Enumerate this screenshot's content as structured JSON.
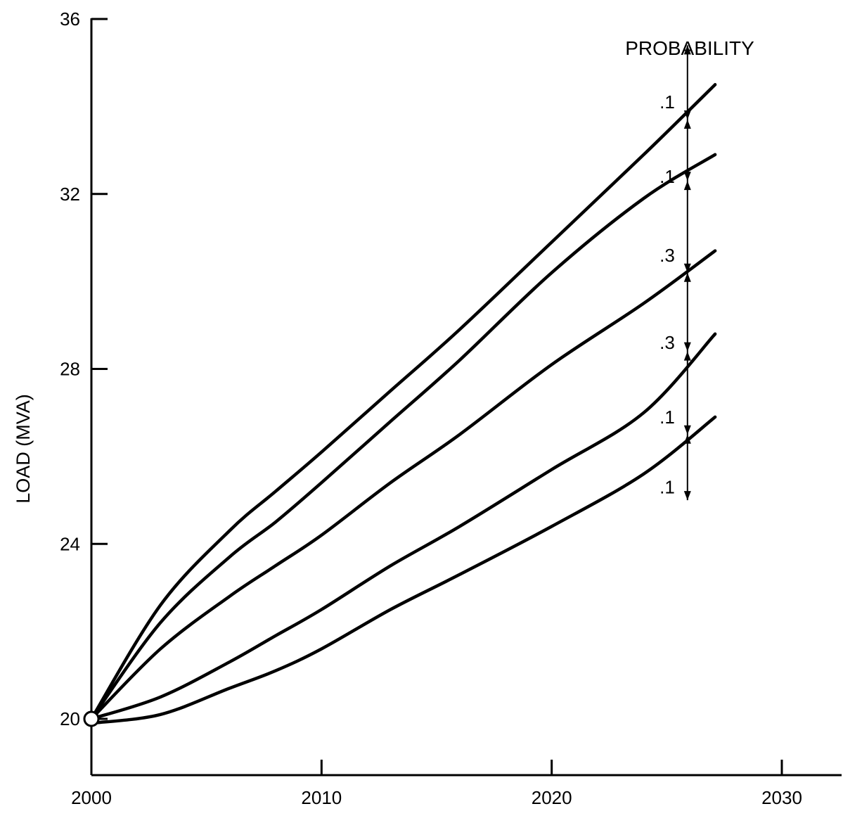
{
  "chart_data": {
    "type": "line",
    "title": "",
    "xlabel": "",
    "ylabel": "LOAD (MVA)",
    "xlim": [
      2000,
      2032
    ],
    "ylim": [
      18.8,
      36
    ],
    "x_ticks": [
      2000,
      2010,
      2020,
      2030
    ],
    "x_tick_labels": [
      "2000",
      "2010",
      "2020",
      "2030"
    ],
    "y_ticks": [
      20,
      24,
      28,
      32,
      36
    ],
    "y_tick_labels": [
      "20",
      "24",
      "28",
      "32",
      "36"
    ],
    "grid": false,
    "legend": "none",
    "start_point": {
      "x": 2000,
      "y": 20
    },
    "series": [
      {
        "x": [
          2000,
          2003,
          2006,
          2008,
          2010,
          2013,
          2016,
          2020,
          2024,
          2027.1
        ],
        "values": [
          20,
          22.6,
          24.3,
          25.2,
          26.1,
          27.5,
          28.9,
          30.9,
          32.9,
          34.5
        ]
      },
      {
        "x": [
          2000,
          2003,
          2006,
          2008,
          2010,
          2013,
          2016,
          2020,
          2024,
          2027.1
        ],
        "values": [
          20,
          22.2,
          23.7,
          24.5,
          25.4,
          26.8,
          28.2,
          30.2,
          31.9,
          32.9
        ]
      },
      {
        "x": [
          2000,
          2003,
          2006,
          2008,
          2010,
          2013,
          2016,
          2020,
          2024,
          2027.1
        ],
        "values": [
          20,
          21.6,
          22.8,
          23.5,
          24.2,
          25.4,
          26.5,
          28.1,
          29.5,
          30.7
        ]
      },
      {
        "x": [
          2000,
          2003,
          2006,
          2008,
          2010,
          2013,
          2016,
          2020,
          2024,
          2027.1
        ],
        "values": [
          20,
          20.5,
          21.3,
          21.9,
          22.5,
          23.5,
          24.4,
          25.7,
          27.0,
          28.8
        ]
      },
      {
        "x": [
          2000,
          2003,
          2006,
          2008,
          2010,
          2013,
          2016,
          2020,
          2024,
          2027.1
        ],
        "values": [
          19.9,
          20.1,
          20.7,
          21.1,
          21.6,
          22.5,
          23.3,
          24.4,
          25.6,
          26.9
        ]
      }
    ],
    "probability_scale": {
      "title": "PROBABILITY",
      "x": 2025.9,
      "top": 35.4,
      "bottom": 25,
      "boundaries": [
        33.7,
        32.3,
        30.2,
        28.4,
        26.5
      ],
      "labels": [
        ".1",
        ".1",
        ".3",
        ".3",
        ".1",
        ".1"
      ],
      "label_positions": [
        34.1,
        32.4,
        30.6,
        28.6,
        26.9,
        25.3
      ]
    }
  }
}
